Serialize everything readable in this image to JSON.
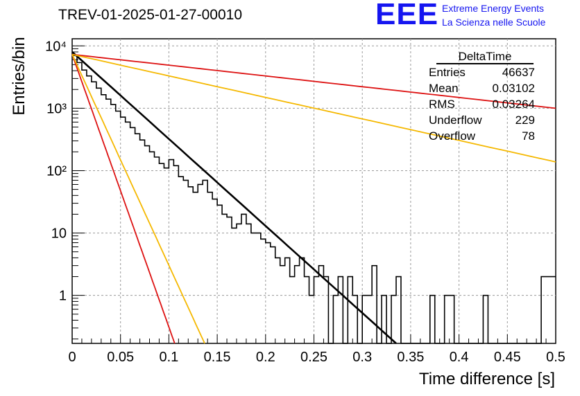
{
  "title": "TREV-01-2025-01-27-00010",
  "logo": {
    "mark": "EEE",
    "line1": "Extreme Energy Events",
    "line2": "La Scienza nelle Scuole",
    "color": "#1515f0"
  },
  "stats": {
    "header": "DeltaTime",
    "rows": [
      {
        "label": "Entries",
        "value": "46637"
      },
      {
        "label": "Mean",
        "value": "0.03102"
      },
      {
        "label": "RMS",
        "value": "0.03264"
      },
      {
        "label": "Underflow",
        "value": "229"
      },
      {
        "label": "Overflow",
        "value": "78"
      }
    ]
  },
  "chart_data": {
    "type": "line",
    "title": "TREV-01-2025-01-27-00010",
    "xlabel": "Time difference [s]",
    "ylabel": "Entries/bin",
    "xlim": [
      0,
      0.5
    ],
    "ylim": [
      0.17,
      13000
    ],
    "yscale": "log",
    "grid": true,
    "xticks": [
      0,
      0.05,
      0.1,
      0.15,
      0.2,
      0.25,
      0.3,
      0.35,
      0.4,
      0.45,
      0.5
    ],
    "xtick_labels": [
      "0",
      "0.05",
      "0.1",
      "0.15",
      "0.2",
      "0.25",
      "0.3",
      "0.35",
      "0.4",
      "0.45",
      "0.5"
    ],
    "yticks": [
      1,
      10,
      100,
      1000,
      10000
    ],
    "ytick_labels": [
      "1",
      "10",
      "10²",
      "10³",
      "10⁴"
    ],
    "histogram": {
      "bin_width": 0.005,
      "color": "#000000",
      "values": [
        7000,
        5400,
        4100,
        3300,
        2650,
        2100,
        1650,
        1400,
        1150,
        900,
        720,
        600,
        490,
        390,
        310,
        250,
        200,
        165,
        130,
        110,
        150,
        120,
        80,
        70,
        55,
        45,
        60,
        70,
        45,
        35,
        28,
        20,
        18,
        12,
        14,
        20,
        14,
        10,
        10,
        8,
        7,
        6,
        4,
        3,
        4,
        2,
        3,
        4,
        2,
        1,
        2,
        3,
        2,
        0,
        1,
        2,
        0,
        2,
        1,
        0,
        1,
        1,
        3,
        0,
        1,
        0,
        1,
        2,
        0,
        0,
        0,
        0,
        0,
        0,
        1,
        0,
        0,
        1,
        1,
        0,
        0,
        0,
        0,
        0,
        0,
        1,
        0,
        0,
        0,
        0,
        0,
        0,
        0,
        0,
        0,
        0,
        0,
        2,
        2,
        2
      ]
    },
    "series": [
      {
        "color": "#000000",
        "x": [
          0.0,
          0.335
        ],
        "y": [
          8000,
          0.17
        ]
      },
      {
        "color": "#dd1111",
        "x": [
          0.0,
          0.5
        ],
        "y": [
          7300,
          1000
        ]
      },
      {
        "color": "#f5b800",
        "x": [
          0.0,
          0.5
        ],
        "y": [
          7300,
          138
        ]
      },
      {
        "color": "#dd1111",
        "x": [
          0.0,
          0.106
        ],
        "y": [
          7300,
          0.17
        ]
      },
      {
        "color": "#f5b800",
        "x": [
          0.0,
          0.137
        ],
        "y": [
          7300,
          0.17
        ]
      }
    ]
  }
}
